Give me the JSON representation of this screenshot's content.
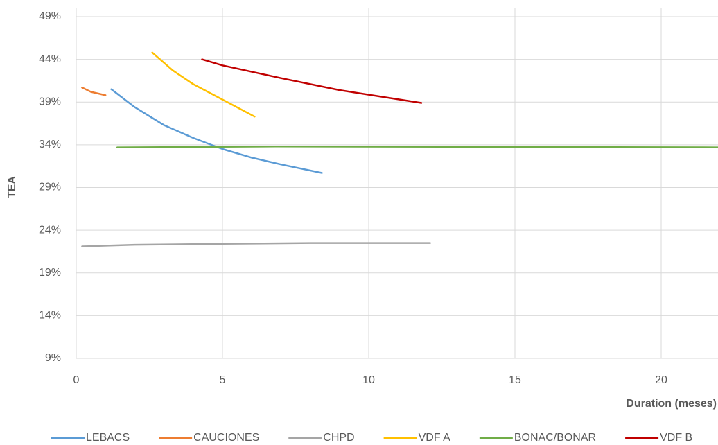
{
  "chart_data": {
    "type": "line",
    "y_label": "TEA",
    "x_label": "Duration (meses)",
    "xlim": [
      0,
      21.95
    ],
    "xticks": [
      0,
      5,
      10,
      15,
      20
    ],
    "ylim": [
      9,
      49
    ],
    "yticks": [
      {
        "value": 9,
        "label": "9%"
      },
      {
        "value": 14,
        "label": "14%"
      },
      {
        "value": 19,
        "label": "19%"
      },
      {
        "value": 24,
        "label": "24%"
      },
      {
        "value": 29,
        "label": "29%"
      },
      {
        "value": 34,
        "label": "34%"
      },
      {
        "value": 39,
        "label": "39%"
      },
      {
        "value": 44,
        "label": "44%"
      },
      {
        "value": 49,
        "label": "49%"
      }
    ],
    "grid": true,
    "legend": "bottom",
    "series": [
      {
        "name": "LEBACS",
        "color": "#5b9bd5",
        "x": [
          1.2,
          2,
          3,
          4,
          5,
          6,
          7,
          8.4
        ],
        "values": [
          40.5,
          38.4,
          36.3,
          34.8,
          33.5,
          32.5,
          31.7,
          30.7
        ]
      },
      {
        "name": "CAUCIONES",
        "color": "#ed7d31",
        "x": [
          0.2,
          0.5,
          1.0
        ],
        "values": [
          40.7,
          40.2,
          39.8
        ]
      },
      {
        "name": "CHPD",
        "color": "#a5a5a5",
        "x": [
          0.2,
          2,
          5,
          8,
          12.1
        ],
        "values": [
          22.1,
          22.3,
          22.4,
          22.5,
          22.5
        ]
      },
      {
        "name": "VDF A",
        "color": "#ffc000",
        "x": [
          2.6,
          3.3,
          4,
          5,
          6.1
        ],
        "values": [
          44.8,
          42.7,
          41.1,
          39.3,
          37.3
        ]
      },
      {
        "name": "BONAC/BONAR",
        "color": "#70ad47",
        "x": [
          1.4,
          6.8,
          21.95
        ],
        "values": [
          33.7,
          33.8,
          33.7
        ]
      },
      {
        "name": "VDF B",
        "color": "#c00000",
        "x": [
          4.3,
          5,
          7,
          9,
          11.8
        ],
        "values": [
          44.0,
          43.3,
          41.8,
          40.4,
          38.9
        ]
      }
    ]
  }
}
